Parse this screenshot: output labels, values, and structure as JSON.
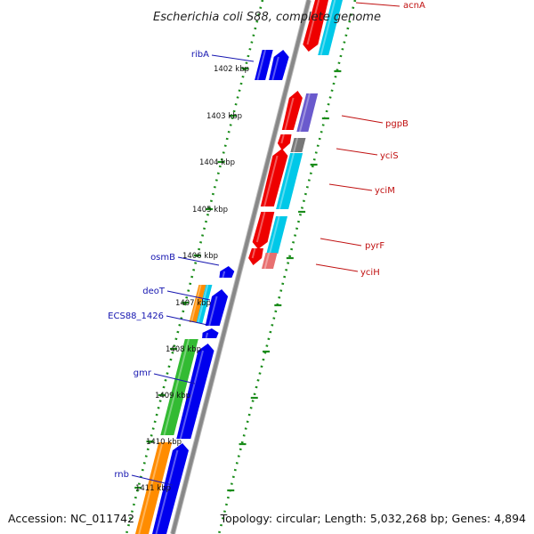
{
  "title": "Escherichia coli S88, complete genome",
  "footer": {
    "accession": "Accession: NC_011742",
    "summary": "Topology: circular; Length: 5,032,268 bp; Genes: 4,894"
  },
  "scale_labels": [
    "1402 kbp",
    "1403 kbp",
    "1404 kbp",
    "1405 kbp",
    "1406 kbp",
    "1407 kbp",
    "1408 kbp",
    "1409 kbp",
    "1410 kbp",
    "1411 kbp"
  ],
  "gene_labels_left": [
    "ribA",
    "osmB",
    "deoT",
    "ECS88_1426",
    "gmr",
    "rnb"
  ],
  "gene_labels_right": [
    "acnA",
    "pgpB",
    "yciS",
    "yciM",
    "pyrF",
    "yciH"
  ],
  "colors": {
    "blue_gene": "#0000ee",
    "red_gene": "#ee0000",
    "cyan_cog": "#00c8e8",
    "green_cog": "#33bb33",
    "orange_cog": "#ff8c00",
    "purple_cog": "#6a5acd",
    "gray_cog": "#777777",
    "pink_cog": "#e87070",
    "backbone": "#888888",
    "dotted_track": "#1a8c1a",
    "label_left": "#1515b0",
    "label_right": "#c01010"
  }
}
